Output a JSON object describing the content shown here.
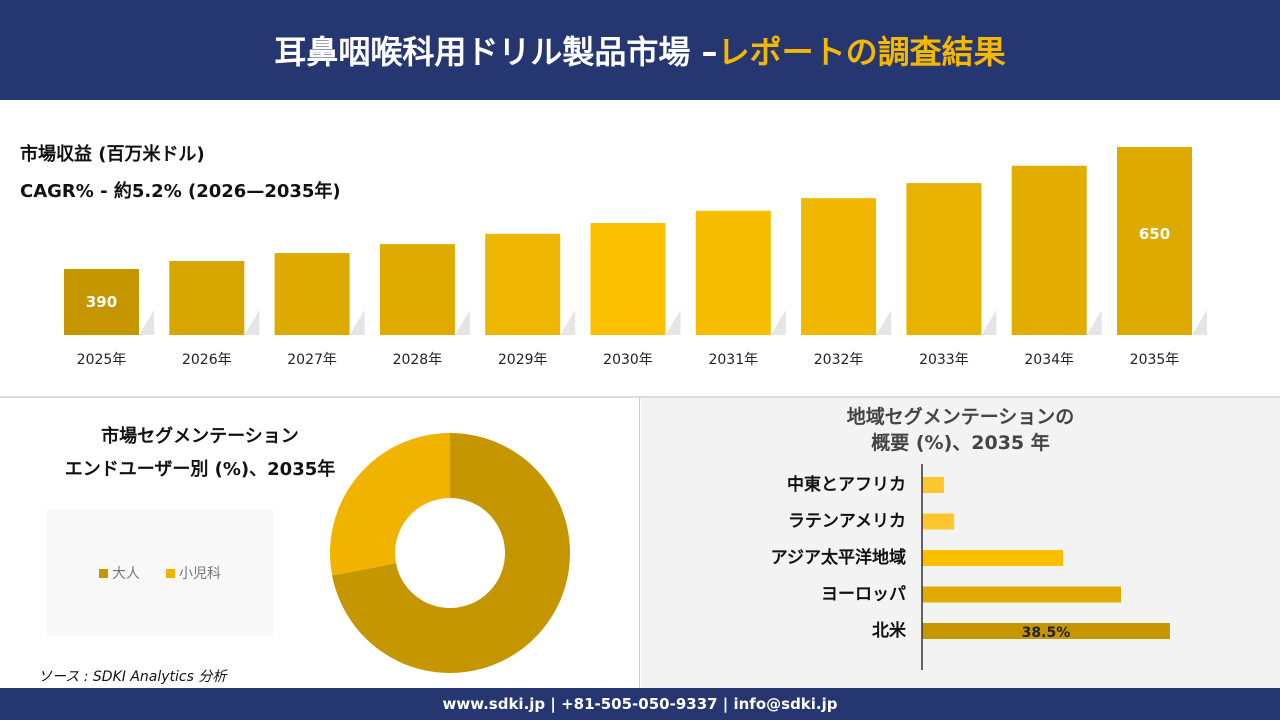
{
  "header": {
    "title_main": "耳鼻咽喉科用ドリル製品市場 –",
    "title_highlight": "レポートの調査結果"
  },
  "colors": {
    "navy": "#253670",
    "accent": "#f5b800",
    "adult": "#c59600",
    "pediatric": "#f0b400"
  },
  "chart_data": [
    {
      "type": "bar",
      "title": "市場収益 (百万米ドル)",
      "subtitle": "CAGR% - 約5.2% (2026—2035年)",
      "categories": [
        "2025年",
        "2026年",
        "2027年",
        "2028年",
        "2029年",
        "2030年",
        "2031年",
        "2032年",
        "2033年",
        "2034年",
        "2035年"
      ],
      "values": [
        390,
        407,
        424,
        443,
        465,
        488,
        514,
        541,
        573,
        610,
        650
      ],
      "data_labels": {
        "0": "390",
        "10": "650"
      },
      "grid": false
    },
    {
      "type": "pie",
      "title_line1": "市場セグメンテーション",
      "title_line2": "エンドユーザー別 (%)、2035年",
      "labels": [
        "大人",
        "小児科"
      ],
      "values": [
        72,
        28
      ],
      "donut": true,
      "legend": "left"
    },
    {
      "type": "bar",
      "orientation": "horizontal",
      "title_line1": "地域セグメンテーションの",
      "title_line2": "概要 (%)、2035 年",
      "categories": [
        "中東とアフリカ",
        "ラテンアメリカ",
        "アジア太平洋地域",
        "ヨーロッパ",
        "北米"
      ],
      "values": [
        3.4,
        5.0,
        21.9,
        30.9,
        38.5
      ],
      "data_labels": {
        "4": "38.5%"
      },
      "colors": [
        "#fcc72e",
        "#fcc72e",
        "#fcbf00",
        "#e0aa00",
        "#c59600"
      ]
    }
  ],
  "source": "ソース : SDKI Analytics 分析",
  "footer": {
    "contact": "www.sdki.jp | +81-505-050-9337 | info@sdki.jp"
  }
}
